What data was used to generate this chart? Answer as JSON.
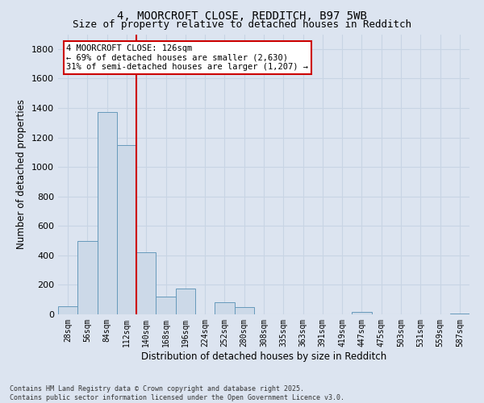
{
  "title_line1": "4, MOORCROFT CLOSE, REDDITCH, B97 5WB",
  "title_line2": "Size of property relative to detached houses in Redditch",
  "xlabel": "Distribution of detached houses by size in Redditch",
  "ylabel": "Number of detached properties",
  "categories": [
    "28sqm",
    "56sqm",
    "84sqm",
    "112sqm",
    "140sqm",
    "168sqm",
    "196sqm",
    "224sqm",
    "252sqm",
    "280sqm",
    "308sqm",
    "335sqm",
    "363sqm",
    "391sqm",
    "419sqm",
    "447sqm",
    "475sqm",
    "503sqm",
    "531sqm",
    "559sqm",
    "587sqm"
  ],
  "values": [
    55,
    500,
    1370,
    1150,
    420,
    120,
    175,
    0,
    80,
    50,
    0,
    0,
    0,
    0,
    0,
    15,
    0,
    0,
    0,
    0,
    5
  ],
  "bar_color": "#ccd9e8",
  "bar_edge_color": "#6699bb",
  "grid_color": "#c8d4e4",
  "bg_color": "#dce4f0",
  "vline_color": "#cc0000",
  "vline_pos": 3.5,
  "annotation_text": "4 MOORCROFT CLOSE: 126sqm\n← 69% of detached houses are smaller (2,630)\n31% of semi-detached houses are larger (1,207) →",
  "annotation_box_facecolor": "#ffffff",
  "annotation_box_edgecolor": "#cc0000",
  "ylim": [
    0,
    1900
  ],
  "yticks": [
    0,
    200,
    400,
    600,
    800,
    1000,
    1200,
    1400,
    1600,
    1800
  ],
  "footer_line1": "Contains HM Land Registry data © Crown copyright and database right 2025.",
  "footer_line2": "Contains public sector information licensed under the Open Government Licence v3.0."
}
